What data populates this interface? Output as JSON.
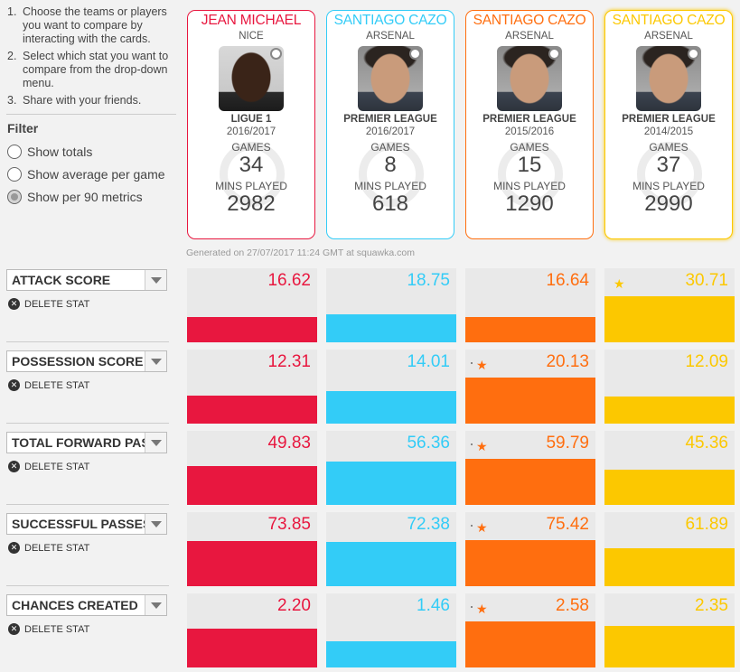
{
  "instructions": [
    {
      "num": "1.",
      "text": "Choose the teams or players you want to compare by interacting with the cards."
    },
    {
      "num": "2.",
      "text": "Select which stat you want to compare from the drop-down menu."
    },
    {
      "num": "3.",
      "text": "Share with your friends."
    }
  ],
  "filter": {
    "title": "Filter",
    "options": [
      "Show totals",
      "Show average per game",
      "Show per 90 metrics"
    ],
    "selected_index": 2
  },
  "card_labels": {
    "games": "GAMES",
    "mins": "MINS PLAYED"
  },
  "cards": [
    {
      "name": "JEAN MICHAEL",
      "club": "NICE",
      "league": "LIGUE 1",
      "season": "2016/2017",
      "games": "34",
      "mins": "2982",
      "color": "#e8173f",
      "photo": "dark"
    },
    {
      "name": "SANTIAGO CAZO",
      "club": "ARSENAL",
      "league": "PREMIER LEAGUE",
      "season": "2016/2017",
      "games": "8",
      "mins": "618",
      "color": "#33ccf7",
      "photo": "light"
    },
    {
      "name": "SANTIAGO CAZO",
      "club": "ARSENAL",
      "league": "PREMIER LEAGUE",
      "season": "2015/2016",
      "games": "15",
      "mins": "1290",
      "color": "#ff6e0f",
      "photo": "light"
    },
    {
      "name": "SANTIAGO CAZO",
      "club": "ARSENAL",
      "league": "PREMIER LEAGUE",
      "season": "2014/2015",
      "games": "37",
      "mins": "2990",
      "color": "#fcc800",
      "photo": "light"
    }
  ],
  "generated": "Generated on 27/07/2017 11:24 GMT at squawka.com",
  "delete_label": "DELETE STAT",
  "stats": [
    {
      "label": "ATTACK SCORE",
      "values": [
        "16.62",
        "18.75",
        "16.64",
        "30.71"
      ],
      "fill": [
        0.34,
        0.38,
        0.34,
        0.62
      ],
      "star": 3
    },
    {
      "label": "POSSESSION SCORE",
      "values": [
        "12.31",
        "14.01",
        "20.13",
        "12.09"
      ],
      "fill": [
        0.38,
        0.44,
        0.62,
        0.37
      ],
      "star": 2
    },
    {
      "label": "TOTAL FORWARD PASSES",
      "values": [
        "49.83",
        "56.36",
        "59.79",
        "45.36"
      ],
      "fill": [
        0.52,
        0.58,
        0.62,
        0.47
      ],
      "star": 2
    },
    {
      "label": "SUCCESSFUL PASSES",
      "values": [
        "73.85",
        "72.38",
        "75.42",
        "61.89"
      ],
      "fill": [
        0.61,
        0.6,
        0.62,
        0.51
      ],
      "star": 2
    },
    {
      "label": "CHANCES CREATED",
      "values": [
        "2.20",
        "1.46",
        "2.58",
        "2.35"
      ],
      "fill": [
        0.53,
        0.35,
        0.62,
        0.56
      ],
      "star": 2
    }
  ]
}
